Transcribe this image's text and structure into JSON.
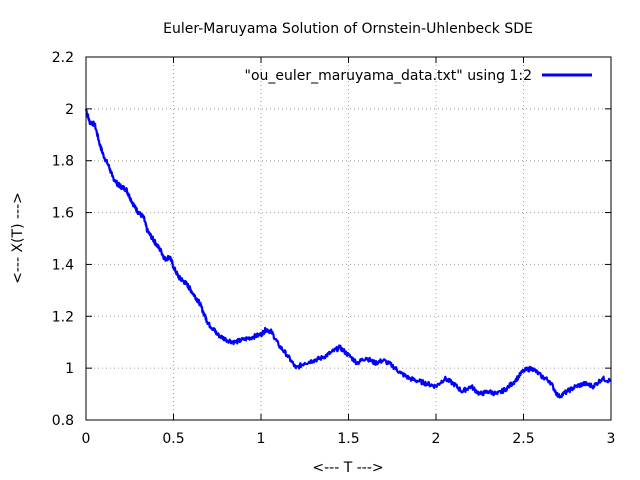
{
  "chart_data": {
    "type": "line",
    "title": "Euler-Maruyama Solution of Ornstein-Uhlenbeck SDE",
    "xlabel": "<--- T --->",
    "ylabel": "<--- X(T) --->",
    "xlim": [
      0,
      3
    ],
    "ylim": [
      0.8,
      2.2
    ],
    "x_ticks": [
      0,
      0.5,
      1,
      1.5,
      2,
      2.5,
      3
    ],
    "x_tick_labels": [
      "0",
      "0.5",
      "1",
      "1.5",
      "2",
      "2.5",
      "3"
    ],
    "y_ticks": [
      0.8,
      1,
      1.2,
      1.4,
      1.6,
      1.8,
      2,
      2.2
    ],
    "y_tick_labels": [
      "0.8",
      "1",
      "1.2",
      "1.4",
      "1.6",
      "1.8",
      "2",
      "2.2"
    ],
    "grid": true,
    "legend_position": "top-right",
    "series": [
      {
        "name": "\"ou_euler_maruyama_data.txt\" using 1:2",
        "color": "#0000ff",
        "x": [
          0,
          0.02,
          0.05,
          0.08,
          0.1,
          0.13,
          0.15,
          0.18,
          0.2,
          0.23,
          0.25,
          0.28,
          0.3,
          0.33,
          0.35,
          0.38,
          0.4,
          0.43,
          0.45,
          0.48,
          0.5,
          0.53,
          0.55,
          0.58,
          0.6,
          0.63,
          0.65,
          0.68,
          0.7,
          0.73,
          0.75,
          0.8,
          0.85,
          0.9,
          0.95,
          1.0,
          1.03,
          1.06,
          1.1,
          1.15,
          1.2,
          1.25,
          1.3,
          1.35,
          1.4,
          1.45,
          1.5,
          1.55,
          1.6,
          1.65,
          1.7,
          1.75,
          1.8,
          1.85,
          1.9,
          1.95,
          2.0,
          2.05,
          2.1,
          2.15,
          2.2,
          2.25,
          2.3,
          2.35,
          2.4,
          2.45,
          2.5,
          2.55,
          2.6,
          2.65,
          2.7,
          2.75,
          2.8,
          2.85,
          2.9,
          2.95,
          3.0
        ],
        "values": [
          2.0,
          1.95,
          1.94,
          1.86,
          1.82,
          1.78,
          1.74,
          1.71,
          1.7,
          1.69,
          1.66,
          1.62,
          1.6,
          1.58,
          1.53,
          1.5,
          1.48,
          1.45,
          1.42,
          1.43,
          1.39,
          1.35,
          1.34,
          1.32,
          1.3,
          1.27,
          1.25,
          1.2,
          1.17,
          1.15,
          1.13,
          1.11,
          1.1,
          1.11,
          1.12,
          1.13,
          1.15,
          1.14,
          1.09,
          1.05,
          1.0,
          1.02,
          1.03,
          1.04,
          1.06,
          1.08,
          1.05,
          1.02,
          1.04,
          1.02,
          1.03,
          1.01,
          0.98,
          0.96,
          0.95,
          0.94,
          0.93,
          0.96,
          0.94,
          0.91,
          0.93,
          0.9,
          0.91,
          0.9,
          0.92,
          0.95,
          0.99,
          1.0,
          0.97,
          0.95,
          0.89,
          0.91,
          0.93,
          0.94,
          0.93,
          0.96,
          0.95
        ]
      }
    ]
  }
}
